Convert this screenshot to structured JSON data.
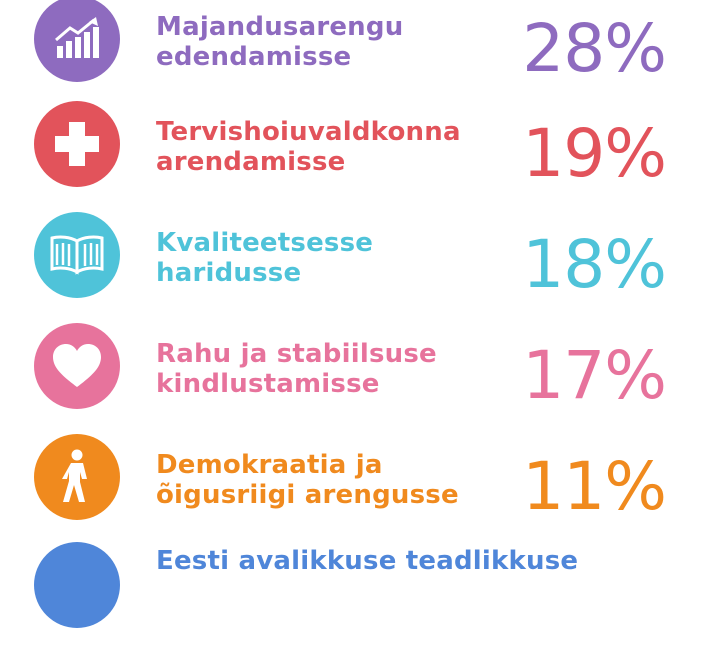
{
  "items": [
    {
      "line1": "Majandusarengu",
      "line2": "edendamisse",
      "percent": "28%",
      "color": "#8e6bbf",
      "icon": "growth-chart-icon"
    },
    {
      "line1": "Tervishoiuvaldkonna",
      "line2": "arendamisse",
      "percent": "19%",
      "color": "#e2535b",
      "icon": "medical-cross-icon"
    },
    {
      "line1": "Kvaliteetsesse",
      "line2": "haridusse",
      "percent": "18%",
      "color": "#4fc3d9",
      "icon": "book-icon"
    },
    {
      "line1": "Rahu ja stabiilsuse",
      "line2": "kindlustamisse",
      "percent": "17%",
      "color": "#e7739c",
      "icon": "heart-icon"
    },
    {
      "line1": "Demokraatia ja",
      "line2": "õigusriigi arengusse",
      "percent": "11%",
      "color": "#f08a1e",
      "icon": "walking-person-icon"
    },
    {
      "line1": "Eesti avalikkuse teadlikkuse",
      "line2": "",
      "percent": "",
      "color": "#4f86d9",
      "icon": "partial-icon"
    }
  ]
}
